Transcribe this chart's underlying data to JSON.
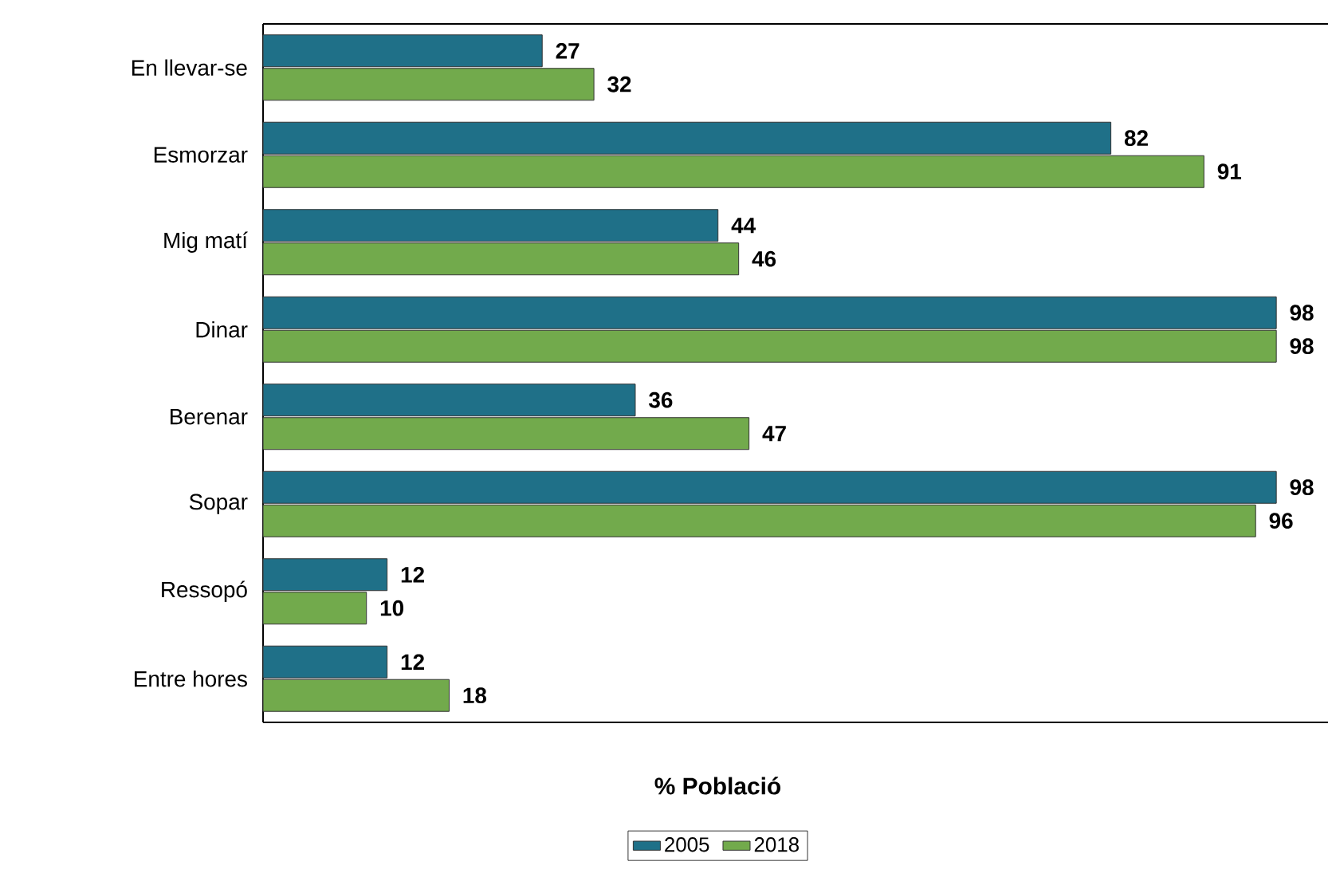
{
  "chart_data": {
    "type": "bar",
    "orientation": "horizontal",
    "xlabel": "% Població",
    "categories": [
      "En llevar-se",
      "Esmorzar",
      "Mig matí",
      "Dinar",
      "Berenar",
      "Sopar",
      "Ressopó",
      "Entre hores"
    ],
    "series": [
      {
        "name": "2005",
        "color": "#1f7088",
        "values": [
          27,
          82,
          44,
          98,
          36,
          98,
          12,
          12
        ]
      },
      {
        "name": "2018",
        "color": "#72aa4c",
        "values": [
          32,
          91,
          46,
          98,
          47,
          96,
          10,
          18
        ]
      }
    ],
    "xlim": [
      0,
      103
    ],
    "tick_labels": "y",
    "data_labels": true,
    "legend": "bottom"
  }
}
